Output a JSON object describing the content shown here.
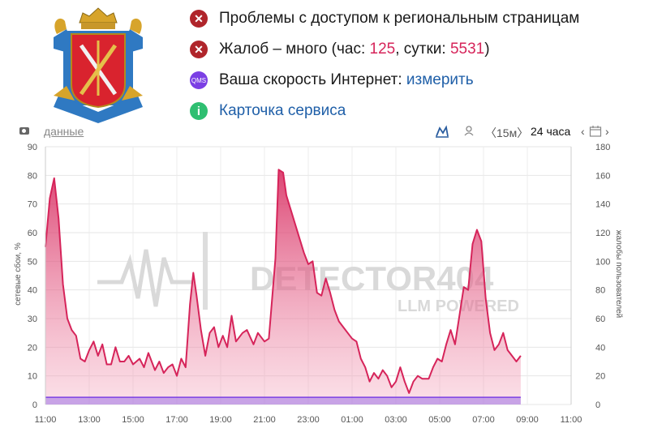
{
  "status": [
    {
      "icon": "error-icon",
      "text": "Проблемы с доступом к региональным страницам"
    },
    {
      "icon": "error-icon",
      "prefix": "Жалоб – много (час: ",
      "hour": "125",
      "mid": ", сутки: ",
      "day": "5531",
      "suffix": ")"
    },
    {
      "icon": "qms-icon",
      "icon_text": "QMS",
      "prefix": "Ваша скорость Интернет: ",
      "link": "измерить"
    },
    {
      "icon": "info-icon",
      "icon_text": "i",
      "link": "Карточка сервиса"
    }
  ],
  "toolbar": {
    "data_label": "данные",
    "range_15m": "15м",
    "range_24h": "24 часа",
    "chev_left": "〈",
    "chev_right": "〉"
  },
  "watermark": {
    "line1": "DETECTOR404",
    "line2": "LLM POWERED"
  },
  "colors": {
    "line": "#d6245a",
    "fill": "#f4a6bd",
    "baseline": "#a77be6",
    "error": "#b0252b",
    "link": "#1f5fa8"
  },
  "chart_data": {
    "type": "area",
    "x_ticks": [
      "11:00",
      "13:00",
      "15:00",
      "17:00",
      "19:00",
      "21:00",
      "23:00",
      "01:00",
      "03:00",
      "05:00",
      "07:00",
      "09:00",
      "11:00"
    ],
    "ylabel_left": "сетевые сбои, %",
    "ylabel_right": "жалобы пользователей",
    "ylim_left": [
      0,
      90
    ],
    "ylim_right": [
      0,
      180
    ],
    "y_ticks_left": [
      0,
      10,
      20,
      30,
      40,
      50,
      60,
      70,
      80,
      90
    ],
    "y_ticks_right": [
      0,
      20,
      40,
      60,
      80,
      100,
      120,
      140,
      160,
      180
    ],
    "x_range": [
      11,
      35
    ],
    "grid": true,
    "series": [
      {
        "axis": "left",
        "points": [
          [
            11.0,
            55
          ],
          [
            11.2,
            72
          ],
          [
            11.4,
            79
          ],
          [
            11.6,
            65
          ],
          [
            11.8,
            42
          ],
          [
            12.0,
            30
          ],
          [
            12.2,
            26
          ],
          [
            12.4,
            24
          ],
          [
            12.6,
            16
          ],
          [
            12.8,
            15
          ],
          [
            13.0,
            19
          ],
          [
            13.2,
            22
          ],
          [
            13.4,
            17
          ],
          [
            13.6,
            21
          ],
          [
            13.8,
            14
          ],
          [
            14.0,
            14
          ],
          [
            14.2,
            20
          ],
          [
            14.4,
            15
          ],
          [
            14.6,
            15
          ],
          [
            14.8,
            17
          ],
          [
            15.0,
            14
          ],
          [
            15.3,
            16
          ],
          [
            15.5,
            13
          ],
          [
            15.7,
            18
          ],
          [
            16.0,
            12
          ],
          [
            16.2,
            15
          ],
          [
            16.4,
            11
          ],
          [
            16.6,
            13
          ],
          [
            16.8,
            14
          ],
          [
            17.0,
            10
          ],
          [
            17.2,
            16
          ],
          [
            17.4,
            13
          ],
          [
            17.6,
            35
          ],
          [
            17.75,
            46
          ],
          [
            17.9,
            38
          ],
          [
            18.1,
            26
          ],
          [
            18.3,
            17
          ],
          [
            18.5,
            25
          ],
          [
            18.7,
            27
          ],
          [
            18.9,
            20
          ],
          [
            19.1,
            24
          ],
          [
            19.3,
            20
          ],
          [
            19.5,
            31
          ],
          [
            19.7,
            22
          ],
          [
            20.0,
            25
          ],
          [
            20.2,
            26
          ],
          [
            20.5,
            21
          ],
          [
            20.7,
            25
          ],
          [
            21.0,
            22
          ],
          [
            21.2,
            23
          ],
          [
            21.5,
            51
          ],
          [
            21.65,
            82
          ],
          [
            21.85,
            81
          ],
          [
            22.0,
            73
          ],
          [
            22.2,
            68
          ],
          [
            22.4,
            63
          ],
          [
            22.6,
            58
          ],
          [
            22.8,
            53
          ],
          [
            23.0,
            49
          ],
          [
            23.2,
            50
          ],
          [
            23.4,
            39
          ],
          [
            23.6,
            38
          ],
          [
            23.8,
            44
          ],
          [
            24.0,
            39
          ],
          [
            24.2,
            33
          ],
          [
            24.4,
            29
          ],
          [
            24.6,
            27
          ],
          [
            24.8,
            25
          ],
          [
            25.0,
            23
          ],
          [
            25.2,
            22
          ],
          [
            25.4,
            16
          ],
          [
            25.6,
            13
          ],
          [
            25.8,
            8
          ],
          [
            26.0,
            11
          ],
          [
            26.2,
            9
          ],
          [
            26.4,
            12
          ],
          [
            26.6,
            10
          ],
          [
            26.8,
            6
          ],
          [
            27.0,
            8
          ],
          [
            27.2,
            13
          ],
          [
            27.4,
            8
          ],
          [
            27.6,
            4
          ],
          [
            27.8,
            8
          ],
          [
            28.0,
            10
          ],
          [
            28.2,
            9
          ],
          [
            28.5,
            9
          ],
          [
            28.7,
            13
          ],
          [
            28.9,
            16
          ],
          [
            29.1,
            15
          ],
          [
            29.3,
            21
          ],
          [
            29.5,
            26
          ],
          [
            29.7,
            21
          ],
          [
            29.9,
            31
          ],
          [
            30.1,
            41
          ],
          [
            30.3,
            40
          ],
          [
            30.5,
            56
          ],
          [
            30.7,
            61
          ],
          [
            30.9,
            57
          ],
          [
            31.1,
            37
          ],
          [
            31.3,
            25
          ],
          [
            31.5,
            19
          ],
          [
            31.7,
            21
          ],
          [
            31.9,
            25
          ],
          [
            32.1,
            19
          ],
          [
            32.3,
            17
          ],
          [
            32.5,
            15
          ],
          [
            32.7,
            17
          ]
        ]
      },
      {
        "axis": "right",
        "points": [
          [
            11,
            5
          ],
          [
            32.7,
            5
          ]
        ]
      }
    ]
  }
}
